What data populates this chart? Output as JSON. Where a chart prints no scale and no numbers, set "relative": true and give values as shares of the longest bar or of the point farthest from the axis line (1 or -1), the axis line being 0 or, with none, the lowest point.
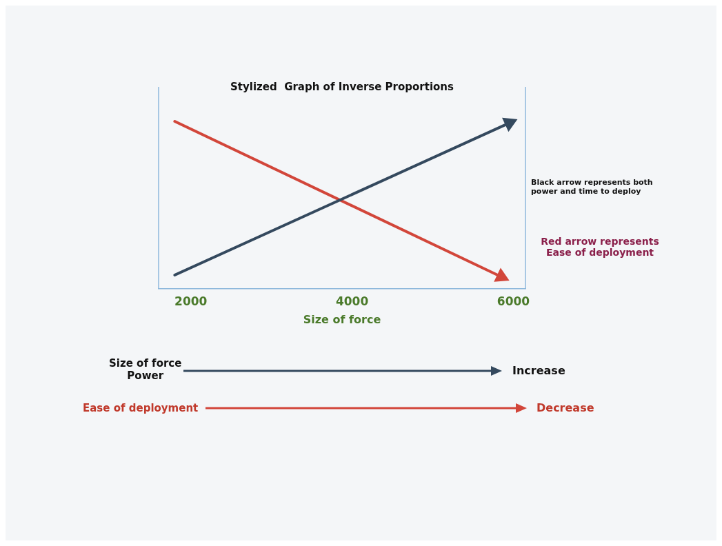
{
  "chart_data": {
    "type": "line",
    "title": "Stylized  Graph of Inverse Proportions",
    "xlabel": "Size of force",
    "relative": true,
    "xlim": [
      1600,
      6150
    ],
    "xticks": [
      2000,
      4000,
      6000
    ],
    "grid": false,
    "legend": false,
    "marker": "triangle",
    "line_style": "solid",
    "series": [
      {
        "color": "#34495e",
        "x": [
          1800,
          5950
        ],
        "values": [
          0.08,
          0.99
        ]
      },
      {
        "color": "#d2463a",
        "x": [
          1800,
          5850
        ],
        "values": [
          1,
          0.07
        ]
      }
    ],
    "annotations": [
      "Black arrow represents both power and time to deploy",
      "Red arrow represents Ease of deployment",
      "Size of force\nPower",
      "Increase",
      "Ease of deployment",
      "Decrease"
    ]
  }
}
